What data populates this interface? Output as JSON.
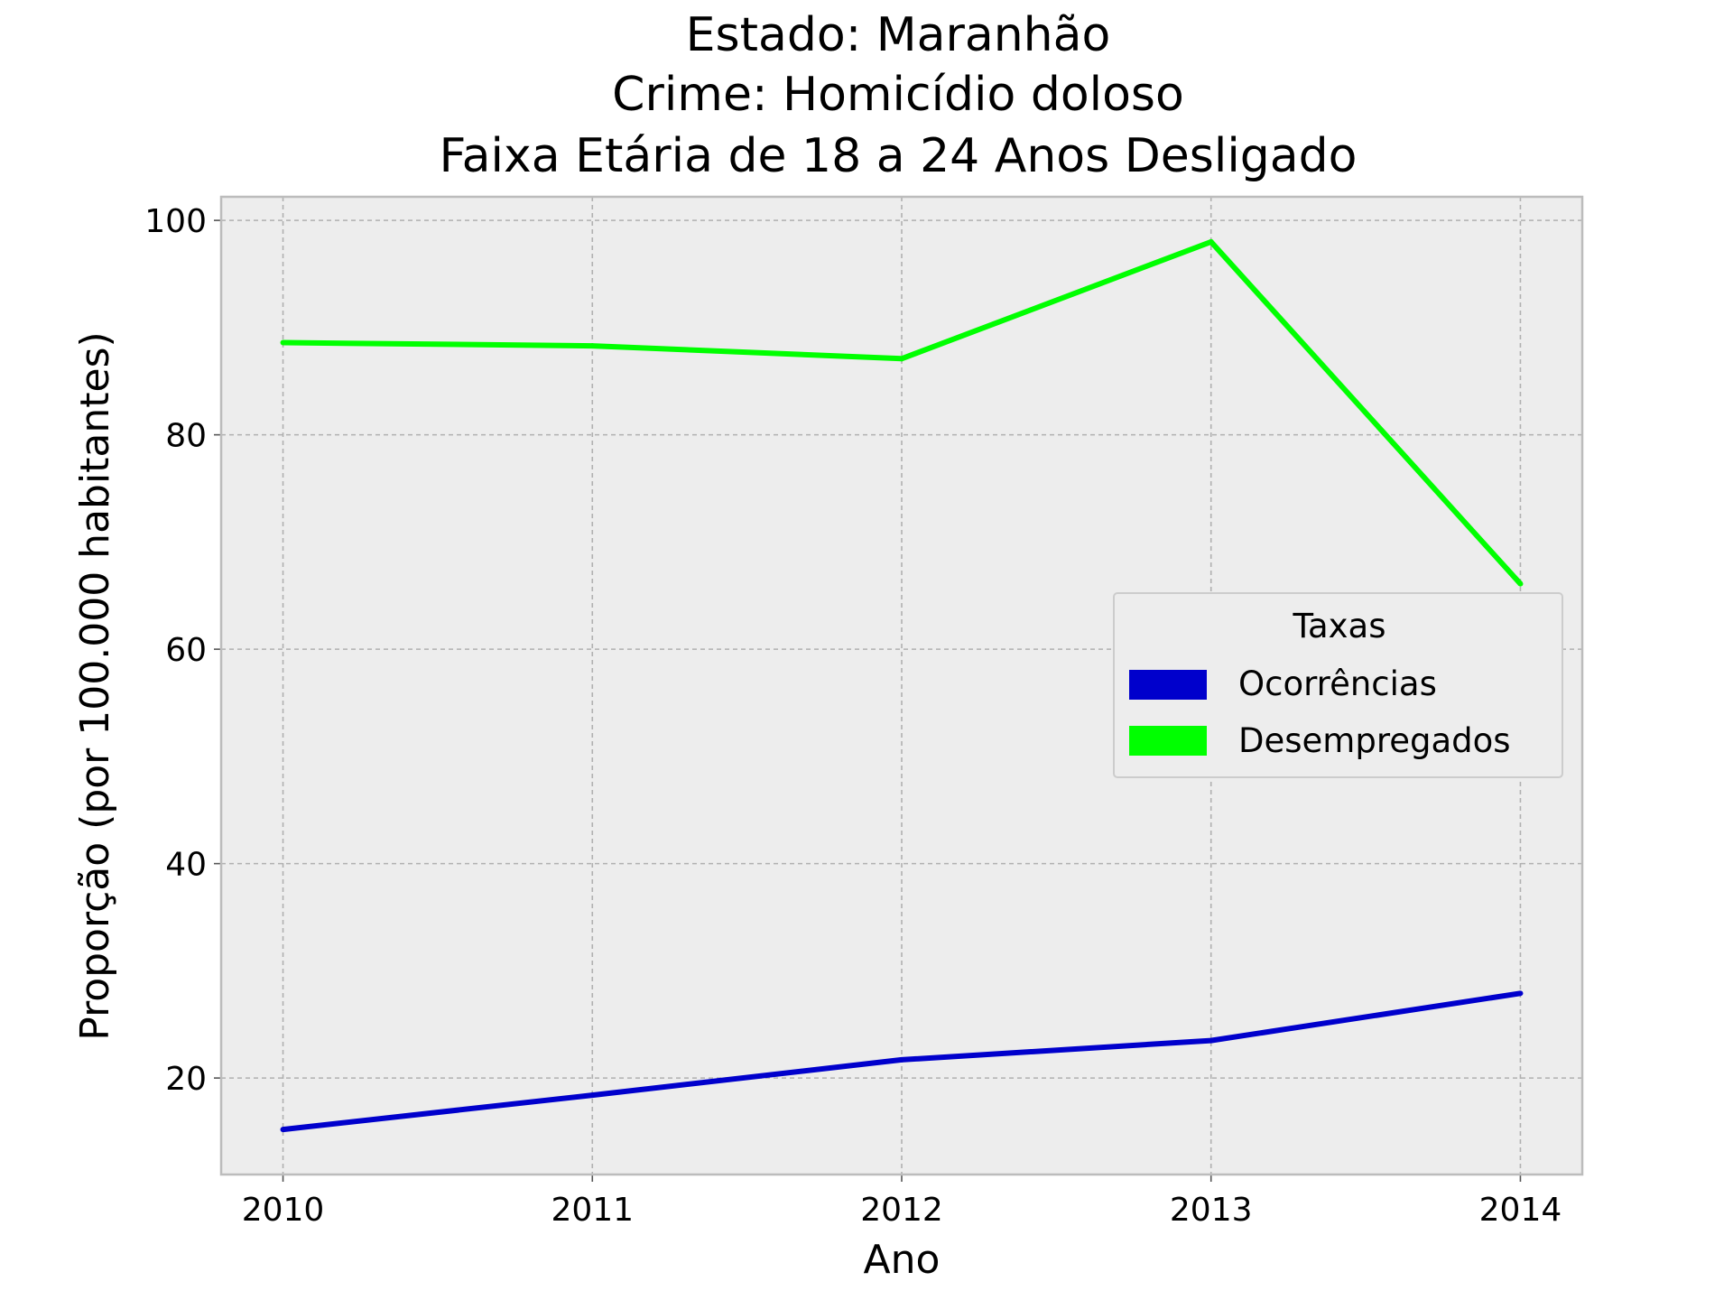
{
  "chart_data": {
    "type": "line",
    "title_lines": [
      "Estado: Maranhão",
      "Crime: Homicídio doloso",
      "Faixa Etária de 18 a 24 Anos   Desligado"
    ],
    "xlabel": "Ano",
    "ylabel": "Proporção (por 100.000 habitantes)",
    "x": [
      2010,
      2011,
      2012,
      2013,
      2014
    ],
    "x_tick_labels": [
      "2010",
      "2011",
      "2012",
      "2013",
      "2014"
    ],
    "y_ticks": [
      20,
      40,
      60,
      80,
      100
    ],
    "y_tick_labels": [
      "20",
      "40",
      "60",
      "80",
      "100"
    ],
    "xlim": [
      2009.8,
      2014.2
    ],
    "ylim": [
      11,
      102.2
    ],
    "grid": true,
    "legend": {
      "title": "Taxas",
      "placement": "center-right"
    },
    "series": [
      {
        "name": "Ocorrências",
        "color": "#0000cc",
        "values": [
          15.2,
          18.4,
          21.7,
          23.5,
          27.9
        ]
      },
      {
        "name": "Desempregados",
        "color": "#00ff00",
        "values": [
          88.6,
          88.3,
          87.1,
          98.0,
          66.1
        ]
      }
    ],
    "colors": {
      "plot_background": "#ededed",
      "axes_edge": "#bcbcbc",
      "legend_background": "#ededed",
      "legend_edge": "#cccccc"
    }
  }
}
